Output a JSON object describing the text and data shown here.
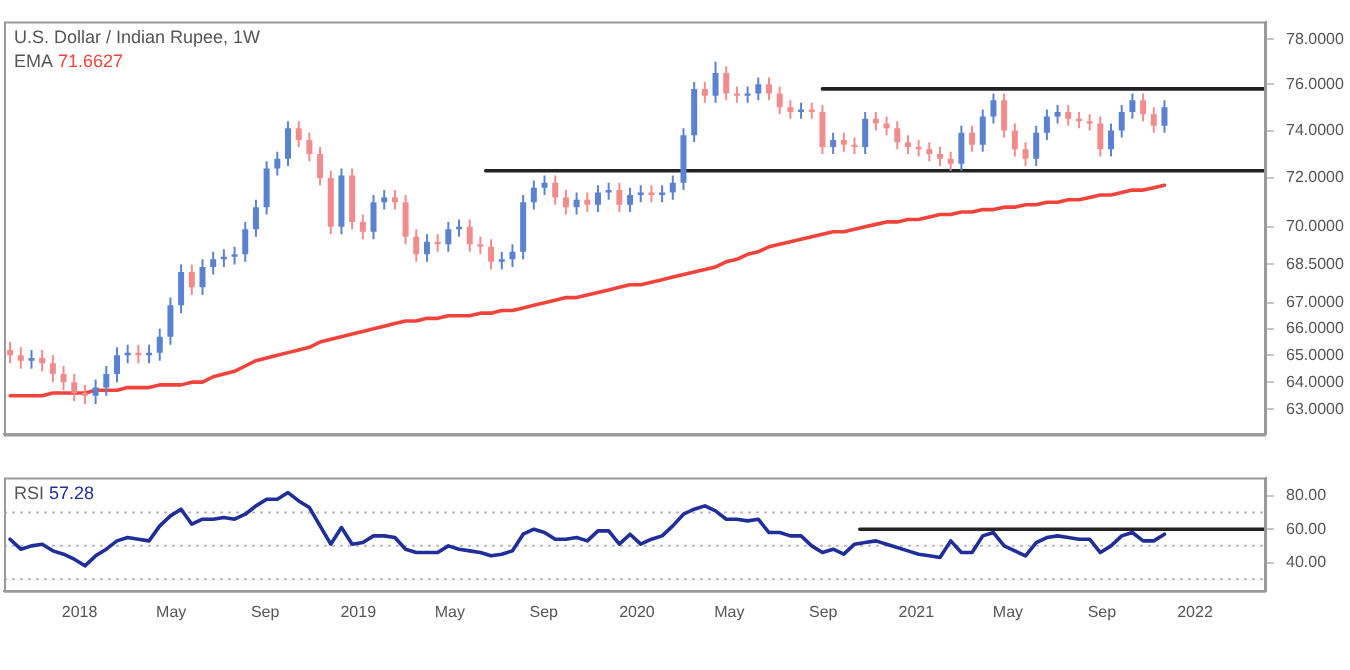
{
  "chart_data": [
    {
      "type": "candlestick",
      "title": "U.S. Dollar / Indian Rupee, 1W",
      "annotations": [
        "71.6627"
      ],
      "log": true,
      "legend": "top left",
      "tick_labels": "y",
      "xlim": [
        "2017-09-24",
        "2022-04-04"
      ],
      "ylim": [
        62.1,
        78.8
      ],
      "yticks": [
        {
          "value": 78,
          "label": "78.0000"
        },
        {
          "value": 76,
          "label": "76.0000"
        },
        {
          "value": 74,
          "label": "74.0000"
        },
        {
          "value": 72,
          "label": "72.0000"
        },
        {
          "value": 70,
          "label": "70.0000"
        },
        {
          "value": 68.5,
          "label": "68.5000"
        },
        {
          "value": 67,
          "label": "67.0000"
        },
        {
          "value": 66,
          "label": "66.0000"
        },
        {
          "value": 65,
          "label": "65.0000"
        },
        {
          "value": 64,
          "label": "64.0000"
        },
        {
          "value": 63,
          "label": "63.0000"
        }
      ],
      "x": [
        "2017-10-02",
        "2017-10-16",
        "2017-10-30",
        "2017-11-13",
        "2017-11-27",
        "2017-12-11",
        "2017-12-25",
        "2018-01-08",
        "2018-01-22",
        "2018-02-05",
        "2018-02-19",
        "2018-03-05",
        "2018-03-19",
        "2018-04-02",
        "2018-04-16",
        "2018-04-30",
        "2018-05-14",
        "2018-05-28",
        "2018-06-11",
        "2018-06-25",
        "2018-07-09",
        "2018-07-23",
        "2018-08-06",
        "2018-08-20",
        "2018-09-03",
        "2018-09-17",
        "2018-10-01",
        "2018-10-15",
        "2018-10-29",
        "2018-11-12",
        "2018-11-26",
        "2018-12-10",
        "2018-12-24",
        "2019-01-07",
        "2019-01-21",
        "2019-02-04",
        "2019-02-18",
        "2019-03-04",
        "2019-03-18",
        "2019-04-01",
        "2019-04-15",
        "2019-04-29",
        "2019-05-13",
        "2019-05-27",
        "2019-06-10",
        "2019-06-24",
        "2019-07-08",
        "2019-07-22",
        "2019-08-05",
        "2019-08-19",
        "2019-09-02",
        "2019-09-16",
        "2019-09-30",
        "2019-10-14",
        "2019-10-28",
        "2019-11-11",
        "2019-11-25",
        "2019-12-09",
        "2019-12-23",
        "2020-01-06",
        "2020-01-20",
        "2020-02-03",
        "2020-02-17",
        "2020-03-02",
        "2020-03-16",
        "2020-03-30",
        "2020-04-13",
        "2020-04-27",
        "2020-05-11",
        "2020-05-25",
        "2020-06-08",
        "2020-06-22",
        "2020-07-06",
        "2020-07-20",
        "2020-08-03",
        "2020-08-17",
        "2020-08-31",
        "2020-09-14",
        "2020-09-28",
        "2020-10-12",
        "2020-10-26",
        "2020-11-09",
        "2020-11-23",
        "2020-12-07",
        "2020-12-21",
        "2021-01-04",
        "2021-01-18",
        "2021-02-01",
        "2021-02-15",
        "2021-03-01",
        "2021-03-15",
        "2021-03-29",
        "2021-04-12",
        "2021-04-26",
        "2021-05-10",
        "2021-05-24",
        "2021-06-07",
        "2021-06-21",
        "2021-07-05",
        "2021-07-19",
        "2021-08-02",
        "2021-08-16",
        "2021-08-30",
        "2021-09-13",
        "2021-09-27",
        "2021-10-11",
        "2021-10-25",
        "2021-11-08",
        "2021-11-22"
      ],
      "ohlc": [
        [
          65.2,
          65.5,
          64.7,
          65.0
        ],
        [
          65.0,
          65.3,
          64.5,
          64.8
        ],
        [
          64.8,
          65.2,
          64.5,
          64.9
        ],
        [
          64.9,
          65.2,
          64.4,
          64.7
        ],
        [
          64.7,
          65.0,
          64.0,
          64.3
        ],
        [
          64.3,
          64.6,
          63.7,
          64.0
        ],
        [
          64.0,
          64.3,
          63.3,
          63.6
        ],
        [
          63.6,
          63.9,
          63.2,
          63.5
        ],
        [
          63.5,
          64.1,
          63.2,
          63.8
        ],
        [
          63.8,
          64.6,
          63.5,
          64.3
        ],
        [
          64.3,
          65.3,
          64.0,
          65.0
        ],
        [
          65.0,
          65.4,
          64.7,
          65.1
        ],
        [
          65.1,
          65.4,
          64.7,
          65.0
        ],
        [
          65.0,
          65.4,
          64.7,
          65.1
        ],
        [
          65.1,
          66.0,
          64.8,
          65.7
        ],
        [
          65.7,
          67.2,
          65.4,
          66.9
        ],
        [
          66.9,
          68.5,
          66.6,
          68.2
        ],
        [
          68.2,
          68.5,
          67.3,
          67.6
        ],
        [
          67.6,
          68.7,
          67.3,
          68.4
        ],
        [
          68.4,
          69.0,
          68.1,
          68.7
        ],
        [
          68.7,
          69.1,
          68.4,
          68.8
        ],
        [
          68.8,
          69.2,
          68.5,
          68.9
        ],
        [
          68.9,
          70.2,
          68.6,
          69.9
        ],
        [
          69.9,
          71.1,
          69.6,
          70.8
        ],
        [
          70.8,
          72.7,
          70.5,
          72.4
        ],
        [
          72.4,
          73.1,
          72.1,
          72.8
        ],
        [
          72.8,
          74.4,
          72.5,
          74.1
        ],
        [
          74.1,
          74.4,
          73.3,
          73.6
        ],
        [
          73.6,
          73.9,
          72.7,
          73.0
        ],
        [
          73.0,
          73.3,
          71.7,
          72.0
        ],
        [
          72.0,
          72.3,
          69.7,
          70.0
        ],
        [
          70.0,
          72.4,
          69.7,
          72.1
        ],
        [
          72.1,
          72.4,
          69.9,
          70.2
        ],
        [
          70.2,
          70.5,
          69.5,
          69.8
        ],
        [
          69.8,
          71.3,
          69.5,
          71.0
        ],
        [
          71.0,
          71.5,
          70.7,
          71.2
        ],
        [
          71.2,
          71.5,
          70.7,
          71.0
        ],
        [
          71.0,
          71.3,
          69.3,
          69.6
        ],
        [
          69.6,
          69.9,
          68.6,
          68.9
        ],
        [
          68.9,
          69.7,
          68.6,
          69.4
        ],
        [
          69.4,
          69.7,
          69.0,
          69.3
        ],
        [
          69.3,
          70.2,
          69.0,
          69.9
        ],
        [
          69.9,
          70.3,
          69.6,
          70.0
        ],
        [
          70.0,
          70.3,
          69.0,
          69.3
        ],
        [
          69.3,
          69.6,
          68.9,
          69.2
        ],
        [
          69.2,
          69.5,
          68.3,
          68.6
        ],
        [
          68.6,
          69.0,
          68.3,
          68.7
        ],
        [
          68.7,
          69.3,
          68.4,
          69.0
        ],
        [
          69.0,
          71.3,
          68.7,
          71.0
        ],
        [
          71.0,
          71.9,
          70.7,
          71.6
        ],
        [
          71.6,
          72.1,
          71.3,
          71.8
        ],
        [
          71.8,
          72.1,
          70.9,
          71.2
        ],
        [
          71.2,
          71.5,
          70.5,
          70.8
        ],
        [
          70.8,
          71.4,
          70.5,
          71.1
        ],
        [
          71.1,
          71.4,
          70.6,
          70.9
        ],
        [
          70.9,
          71.7,
          70.6,
          71.4
        ],
        [
          71.4,
          71.8,
          71.1,
          71.5
        ],
        [
          71.5,
          71.8,
          70.6,
          70.9
        ],
        [
          70.9,
          71.6,
          70.6,
          71.3
        ],
        [
          71.3,
          71.7,
          71.0,
          71.4
        ],
        [
          71.4,
          71.7,
          71.0,
          71.3
        ],
        [
          71.3,
          71.7,
          71.0,
          71.4
        ],
        [
          71.4,
          72.1,
          71.1,
          71.8
        ],
        [
          71.8,
          74.1,
          71.5,
          73.8
        ],
        [
          73.8,
          76.1,
          73.5,
          75.8
        ],
        [
          75.8,
          76.1,
          75.2,
          75.5
        ],
        [
          75.5,
          77.0,
          75.2,
          76.5
        ],
        [
          76.5,
          76.8,
          75.3,
          75.6
        ],
        [
          75.6,
          75.9,
          75.2,
          75.5
        ],
        [
          75.5,
          75.9,
          75.2,
          75.6
        ],
        [
          75.6,
          76.3,
          75.3,
          76.0
        ],
        [
          76.0,
          76.3,
          75.3,
          75.6
        ],
        [
          75.6,
          75.9,
          74.7,
          75.0
        ],
        [
          75.0,
          75.3,
          74.5,
          74.8
        ],
        [
          74.8,
          75.2,
          74.5,
          74.9
        ],
        [
          74.9,
          75.2,
          74.5,
          74.8
        ],
        [
          74.8,
          75.1,
          73.0,
          73.3
        ],
        [
          73.3,
          73.9,
          73.0,
          73.6
        ],
        [
          73.6,
          73.9,
          73.1,
          73.4
        ],
        [
          73.4,
          73.7,
          73.0,
          73.3
        ],
        [
          73.3,
          74.8,
          73.0,
          74.5
        ],
        [
          74.5,
          74.8,
          74.0,
          74.3
        ],
        [
          74.3,
          74.6,
          73.8,
          74.1
        ],
        [
          74.1,
          74.4,
          73.2,
          73.5
        ],
        [
          73.5,
          73.8,
          73.0,
          73.3
        ],
        [
          73.3,
          73.6,
          72.9,
          73.2
        ],
        [
          73.2,
          73.5,
          72.7,
          73.0
        ],
        [
          73.0,
          73.3,
          72.5,
          72.8
        ],
        [
          72.8,
          73.1,
          72.3,
          72.6
        ],
        [
          72.6,
          74.2,
          72.3,
          73.9
        ],
        [
          73.9,
          74.2,
          73.1,
          73.4
        ],
        [
          73.4,
          74.9,
          73.1,
          74.6
        ],
        [
          74.6,
          75.6,
          74.3,
          75.3
        ],
        [
          75.3,
          75.6,
          73.7,
          74.0
        ],
        [
          74.0,
          74.3,
          72.9,
          73.2
        ],
        [
          73.2,
          73.5,
          72.5,
          72.8
        ],
        [
          72.8,
          74.2,
          72.5,
          73.9
        ],
        [
          73.9,
          74.9,
          73.6,
          74.6
        ],
        [
          74.6,
          75.1,
          74.3,
          74.8
        ],
        [
          74.8,
          75.1,
          74.2,
          74.5
        ],
        [
          74.5,
          74.8,
          74.1,
          74.4
        ],
        [
          74.4,
          74.7,
          74.0,
          74.3
        ],
        [
          74.3,
          74.6,
          72.9,
          73.2
        ],
        [
          73.2,
          74.3,
          72.9,
          74.0
        ],
        [
          74.0,
          75.1,
          73.7,
          74.8
        ],
        [
          74.8,
          75.6,
          74.5,
          75.3
        ],
        [
          75.3,
          75.6,
          74.4,
          74.7
        ],
        [
          74.7,
          75.0,
          73.9,
          74.2
        ],
        [
          74.2,
          75.3,
          73.9,
          75.0
        ]
      ],
      "colors": [
        "#f28c8c",
        "#f28c8c",
        "#5b82d1",
        "#f28c8c",
        "#f28c8c",
        "#f28c8c",
        "#f28c8c",
        "#f28c8c",
        "#5b82d1",
        "#5b82d1",
        "#5b82d1",
        "#5b82d1",
        "#f28c8c",
        "#5b82d1",
        "#5b82d1",
        "#5b82d1",
        "#5b82d1",
        "#f28c8c",
        "#5b82d1",
        "#5b82d1",
        "#5b82d1",
        "#5b82d1",
        "#5b82d1",
        "#5b82d1",
        "#5b82d1",
        "#5b82d1",
        "#5b82d1",
        "#f28c8c",
        "#f28c8c",
        "#f28c8c",
        "#f28c8c",
        "#5b82d1",
        "#f28c8c",
        "#f28c8c",
        "#5b82d1",
        "#5b82d1",
        "#f28c8c",
        "#f28c8c",
        "#f28c8c",
        "#5b82d1",
        "#f28c8c",
        "#5b82d1",
        "#5b82d1",
        "#f28c8c",
        "#f28c8c",
        "#f28c8c",
        "#5b82d1",
        "#5b82d1",
        "#5b82d1",
        "#5b82d1",
        "#5b82d1",
        "#f28c8c",
        "#f28c8c",
        "#5b82d1",
        "#f28c8c",
        "#5b82d1",
        "#5b82d1",
        "#f28c8c",
        "#5b82d1",
        "#5b82d1",
        "#f28c8c",
        "#5b82d1",
        "#5b82d1",
        "#5b82d1",
        "#5b82d1",
        "#f28c8c",
        "#5b82d1",
        "#f28c8c",
        "#f28c8c",
        "#5b82d1",
        "#5b82d1",
        "#f28c8c",
        "#f28c8c",
        "#f28c8c",
        "#5b82d1",
        "#f28c8c",
        "#f28c8c",
        "#5b82d1",
        "#f28c8c",
        "#f28c8c",
        "#5b82d1",
        "#f28c8c",
        "#f28c8c",
        "#f28c8c",
        "#f28c8c",
        "#f28c8c",
        "#f28c8c",
        "#f28c8c",
        "#f28c8c",
        "#5b82d1",
        "#f28c8c",
        "#5b82d1",
        "#5b82d1",
        "#f28c8c",
        "#f28c8c",
        "#f28c8c",
        "#5b82d1",
        "#5b82d1",
        "#5b82d1",
        "#f28c8c",
        "#f28c8c",
        "#f28c8c",
        "#f28c8c",
        "#5b82d1",
        "#5b82d1",
        "#5b82d1",
        "#f28c8c",
        "#f28c8c",
        "#5b82d1"
      ],
      "series": [
        {
          "name": "EMA",
          "type": "line",
          "color": "#f2433b",
          "values": [
            63.5,
            63.5,
            63.5,
            63.5,
            63.6,
            63.6,
            63.6,
            63.6,
            63.7,
            63.7,
            63.7,
            63.8,
            63.8,
            63.8,
            63.9,
            63.9,
            63.9,
            64.0,
            64.0,
            64.2,
            64.3,
            64.4,
            64.6,
            64.8,
            64.9,
            65.0,
            65.1,
            65.2,
            65.3,
            65.5,
            65.6,
            65.7,
            65.8,
            65.9,
            66.0,
            66.1,
            66.2,
            66.3,
            66.3,
            66.4,
            66.4,
            66.5,
            66.5,
            66.5,
            66.6,
            66.6,
            66.7,
            66.7,
            66.8,
            66.9,
            67.0,
            67.1,
            67.2,
            67.2,
            67.3,
            67.4,
            67.5,
            67.6,
            67.7,
            67.7,
            67.8,
            67.9,
            68.0,
            68.1,
            68.2,
            68.3,
            68.4,
            68.6,
            68.7,
            68.9,
            69.0,
            69.2,
            69.3,
            69.4,
            69.5,
            69.6,
            69.7,
            69.8,
            69.8,
            69.9,
            70.0,
            70.1,
            70.2,
            70.2,
            70.3,
            70.3,
            70.4,
            70.5,
            70.5,
            70.6,
            70.6,
            70.7,
            70.7,
            70.8,
            70.8,
            70.9,
            70.9,
            71.0,
            71.0,
            71.1,
            71.1,
            71.2,
            71.3,
            71.3,
            71.4,
            71.5,
            71.5,
            71.6,
            71.7
          ]
        },
        {
          "type": "line",
          "color": "#222222",
          "x": [
            "2020-08-31",
            "2022-04-04"
          ],
          "values": [
            75.8,
            75.8
          ]
        },
        {
          "type": "line",
          "color": "#222222",
          "x": [
            "2019-06-17",
            "2022-04-04"
          ],
          "values": [
            72.3,
            72.3
          ]
        }
      ]
    },
    {
      "type": "line",
      "legend": "top left",
      "annotations": [
        "57.28"
      ],
      "xlim": [
        "2017-09-24",
        "2022-04-04"
      ],
      "ylim": [
        23,
        91
      ],
      "xticks": [
        {
          "value": "2018-01-01",
          "label": "2018"
        },
        {
          "value": "2018-05-01",
          "label": "May"
        },
        {
          "value": "2018-09-01",
          "label": "Sep"
        },
        {
          "value": "2019-01-01",
          "label": "2019"
        },
        {
          "value": "2019-05-01",
          "label": "May"
        },
        {
          "value": "2019-09-01",
          "label": "Sep"
        },
        {
          "value": "2020-01-01",
          "label": "2020"
        },
        {
          "value": "2020-05-01",
          "label": "May"
        },
        {
          "value": "2020-09-01",
          "label": "Sep"
        },
        {
          "value": "2021-01-01",
          "label": "2021"
        },
        {
          "value": "2021-05-01",
          "label": "May"
        },
        {
          "value": "2021-09-01",
          "label": "Sep"
        },
        {
          "value": "2022-01-01",
          "label": "2022"
        }
      ],
      "yticks": [
        {
          "value": 80,
          "label": "80.00"
        },
        {
          "value": 60,
          "label": "60.00"
        },
        {
          "value": 40,
          "label": "40.00"
        }
      ],
      "ref_lines": [
        {
          "axis": "y",
          "value": 70,
          "color": "#bbbbbb",
          "line_style": "dotted"
        },
        {
          "axis": "y",
          "value": 50,
          "color": "#bbbbbb",
          "line_style": "dotted"
        },
        {
          "axis": "y",
          "value": 30,
          "color": "#bbbbbb",
          "line_style": "dotted"
        }
      ],
      "x": [
        "2017-10-02",
        "2017-10-16",
        "2017-10-30",
        "2017-11-13",
        "2017-11-27",
        "2017-12-11",
        "2017-12-25",
        "2018-01-08",
        "2018-01-22",
        "2018-02-05",
        "2018-02-19",
        "2018-03-05",
        "2018-03-19",
        "2018-04-02",
        "2018-04-16",
        "2018-04-30",
        "2018-05-14",
        "2018-05-28",
        "2018-06-11",
        "2018-06-25",
        "2018-07-09",
        "2018-07-23",
        "2018-08-06",
        "2018-08-20",
        "2018-09-03",
        "2018-09-17",
        "2018-10-01",
        "2018-10-15",
        "2018-10-29",
        "2018-11-12",
        "2018-11-26",
        "2018-12-10",
        "2018-12-24",
        "2019-01-07",
        "2019-01-21",
        "2019-02-04",
        "2019-02-18",
        "2019-03-04",
        "2019-03-18",
        "2019-04-01",
        "2019-04-15",
        "2019-04-29",
        "2019-05-13",
        "2019-05-27",
        "2019-06-10",
        "2019-06-24",
        "2019-07-08",
        "2019-07-22",
        "2019-08-05",
        "2019-08-19",
        "2019-09-02",
        "2019-09-16",
        "2019-09-30",
        "2019-10-14",
        "2019-10-28",
        "2019-11-11",
        "2019-11-25",
        "2019-12-09",
        "2019-12-23",
        "2020-01-06",
        "2020-01-20",
        "2020-02-03",
        "2020-02-17",
        "2020-03-02",
        "2020-03-16",
        "2020-03-30",
        "2020-04-13",
        "2020-04-27",
        "2020-05-11",
        "2020-05-25",
        "2020-06-08",
        "2020-06-22",
        "2020-07-06",
        "2020-07-20",
        "2020-08-03",
        "2020-08-17",
        "2020-08-31",
        "2020-09-14",
        "2020-09-28",
        "2020-10-12",
        "2020-10-26",
        "2020-11-09",
        "2020-11-23",
        "2020-12-07",
        "2020-12-21",
        "2021-01-04",
        "2021-01-18",
        "2021-02-01",
        "2021-02-15",
        "2021-03-01",
        "2021-03-15",
        "2021-03-29",
        "2021-04-12",
        "2021-04-26",
        "2021-05-10",
        "2021-05-24",
        "2021-06-07",
        "2021-06-21",
        "2021-07-05",
        "2021-07-19",
        "2021-08-02",
        "2021-08-16",
        "2021-08-30",
        "2021-09-13",
        "2021-09-27",
        "2021-10-11",
        "2021-10-25",
        "2021-11-08",
        "2021-11-22"
      ],
      "series": [
        {
          "name": "RSI",
          "type": "line",
          "color": "#1f2f9a",
          "values": [
            54,
            48,
            50,
            51,
            47,
            45,
            42,
            38,
            44,
            48,
            53,
            55,
            54,
            53,
            62,
            68,
            72,
            63,
            66,
            66,
            67,
            66,
            69,
            74,
            78,
            78,
            82,
            77,
            73,
            62,
            51,
            61,
            51,
            52,
            56,
            56,
            55,
            48,
            46,
            46,
            46,
            50,
            48,
            47,
            46,
            44,
            45,
            47,
            57,
            60,
            58,
            54,
            54,
            55,
            53,
            59,
            59,
            51,
            57,
            51,
            54,
            56,
            62,
            69,
            72,
            74,
            71,
            66,
            66,
            65,
            66,
            58,
            58,
            56,
            56,
            50,
            46,
            48,
            45,
            51,
            52,
            53,
            51,
            49,
            47,
            45,
            44,
            43,
            53,
            46,
            46,
            56,
            58,
            50,
            47,
            44,
            52,
            55,
            56,
            55,
            54,
            54,
            46,
            50,
            56,
            58,
            53,
            53,
            57
          ]
        },
        {
          "type": "line",
          "color": "#222222",
          "x": [
            "2020-10-19",
            "2022-04-04"
          ],
          "values": [
            60,
            60
          ]
        }
      ]
    }
  ]
}
